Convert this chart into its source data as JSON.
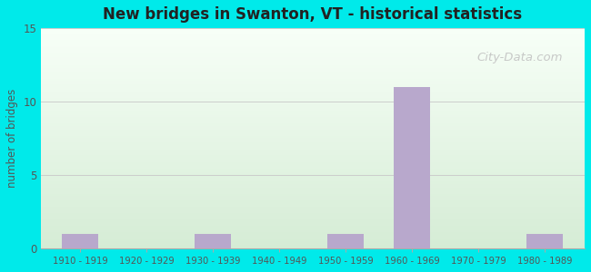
{
  "title": "New bridges in Swanton, VT - historical statistics",
  "categories": [
    "1910 - 1919",
    "1920 - 1929",
    "1930 - 1939",
    "1940 - 1949",
    "1950 - 1959",
    "1960 - 1969",
    "1970 - 1979",
    "1980 - 1989"
  ],
  "values": [
    1,
    0,
    1,
    0,
    1,
    11,
    0,
    1
  ],
  "bar_color": "#b8a8cc",
  "ylabel": "number of bridges",
  "ylim": [
    0,
    15
  ],
  "yticks": [
    0,
    5,
    10,
    15
  ],
  "background_outer": "#00eaea",
  "background_inner_top": "#f0f8f0",
  "background_inner_bottom": "#d8eed8",
  "grid_color": "#cccccc",
  "title_color": "#222222",
  "axis_label_color": "#555555",
  "tick_label_color": "#555555",
  "watermark_text": "City-Data.com",
  "watermark_color": "#c0c0c0"
}
